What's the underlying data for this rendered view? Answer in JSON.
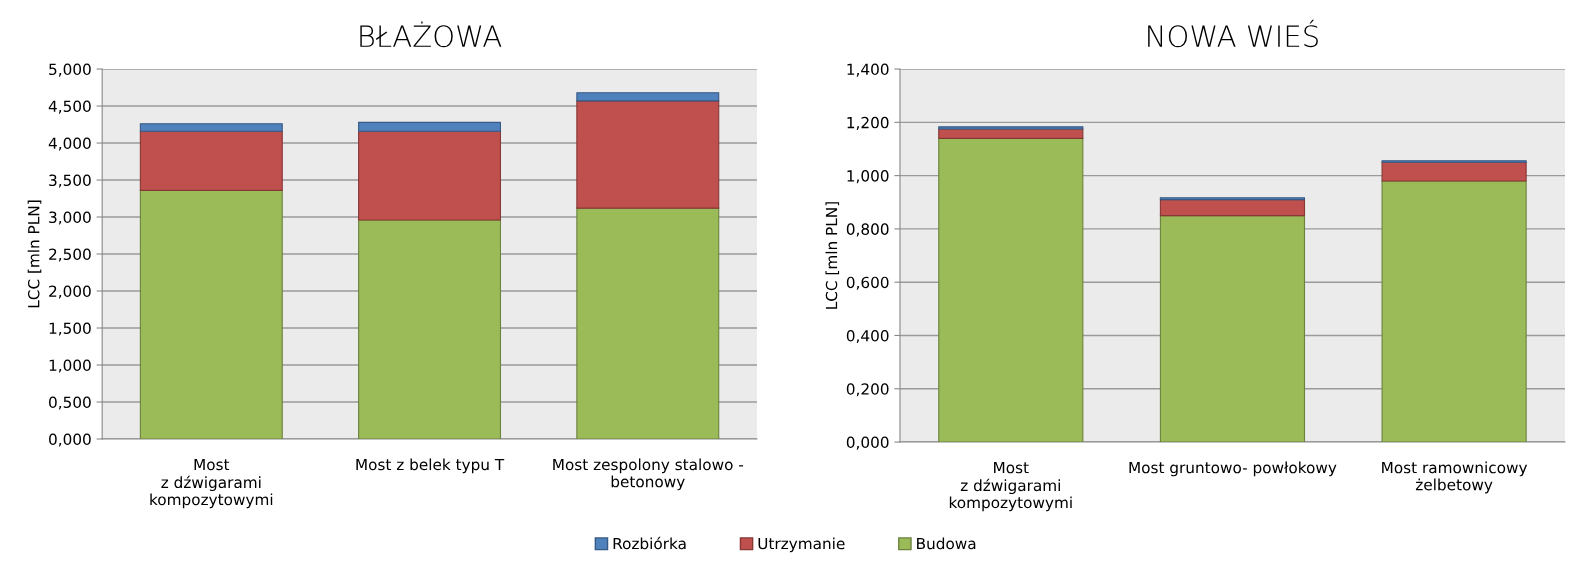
{
  "chart_data": [
    {
      "type": "bar",
      "title": "BŁAŻOWA",
      "ylabel": "LCC [mln PLN]",
      "stacked": true,
      "grid": "y",
      "legend": "bottom",
      "categories": [
        "Most\nz dźwigarami\nkompozytowymi",
        "Most z belek typu T",
        "Most zespolony stalowo -\nbetonowy"
      ],
      "series": [
        {
          "name": "Budowa",
          "color": "#9bbb59",
          "values": [
            3.36,
            2.96,
            3.12
          ]
        },
        {
          "name": "Utrzymanie",
          "color": "#c0504d",
          "values": [
            0.8,
            1.2,
            1.45
          ]
        },
        {
          "name": "Rozbiórka",
          "color": "#4f81bd",
          "values": [
            0.1,
            0.12,
            0.11
          ]
        }
      ],
      "ylim": [
        0,
        5
      ],
      "yticks": [
        {
          "value": 0,
          "label": "0,000"
        },
        {
          "value": 0.5,
          "label": "0,500"
        },
        {
          "value": 1,
          "label": "1,000"
        },
        {
          "value": 1.5,
          "label": "1,500"
        },
        {
          "value": 2,
          "label": "2,000"
        },
        {
          "value": 2.5,
          "label": "2,500"
        },
        {
          "value": 3,
          "label": "3,000"
        },
        {
          "value": 3.5,
          "label": "3,500"
        },
        {
          "value": 4,
          "label": "4,000"
        },
        {
          "value": 4.5,
          "label": "4,500"
        },
        {
          "value": 5,
          "label": "5,000"
        }
      ]
    },
    {
      "type": "bar",
      "title": "NOWA WIEŚ",
      "ylabel": "LCC [mln PLN]",
      "stacked": true,
      "grid": "y",
      "legend": "bottom",
      "categories": [
        "Most\nz dźwigarami\nkompozytowymi",
        "Most gruntowo- powłokowy",
        "Most ramownicowy\nżelbetowy"
      ],
      "series": [
        {
          "name": "Budowa",
          "color": "#9bbb59",
          "values": [
            1.14,
            0.85,
            0.98
          ]
        },
        {
          "name": "Utrzymanie",
          "color": "#c0504d",
          "values": [
            0.035,
            0.06,
            0.07
          ]
        },
        {
          "name": "Rozbiórka",
          "color": "#4f81bd",
          "values": [
            0.008,
            0.007,
            0.006
          ]
        }
      ],
      "ylim": [
        0,
        1.4
      ],
      "yticks": [
        {
          "value": 0,
          "label": "0,000"
        },
        {
          "value": 0.2,
          "label": "0,200"
        },
        {
          "value": 0.4,
          "label": "0,400"
        },
        {
          "value": 0.6,
          "label": "0,600"
        },
        {
          "value": 0.8,
          "label": "0,800"
        },
        {
          "value": 1.0,
          "label": "1,000"
        },
        {
          "value": 1.2,
          "label": "1,200"
        },
        {
          "value": 1.4,
          "label": "1,400"
        }
      ]
    }
  ]
}
